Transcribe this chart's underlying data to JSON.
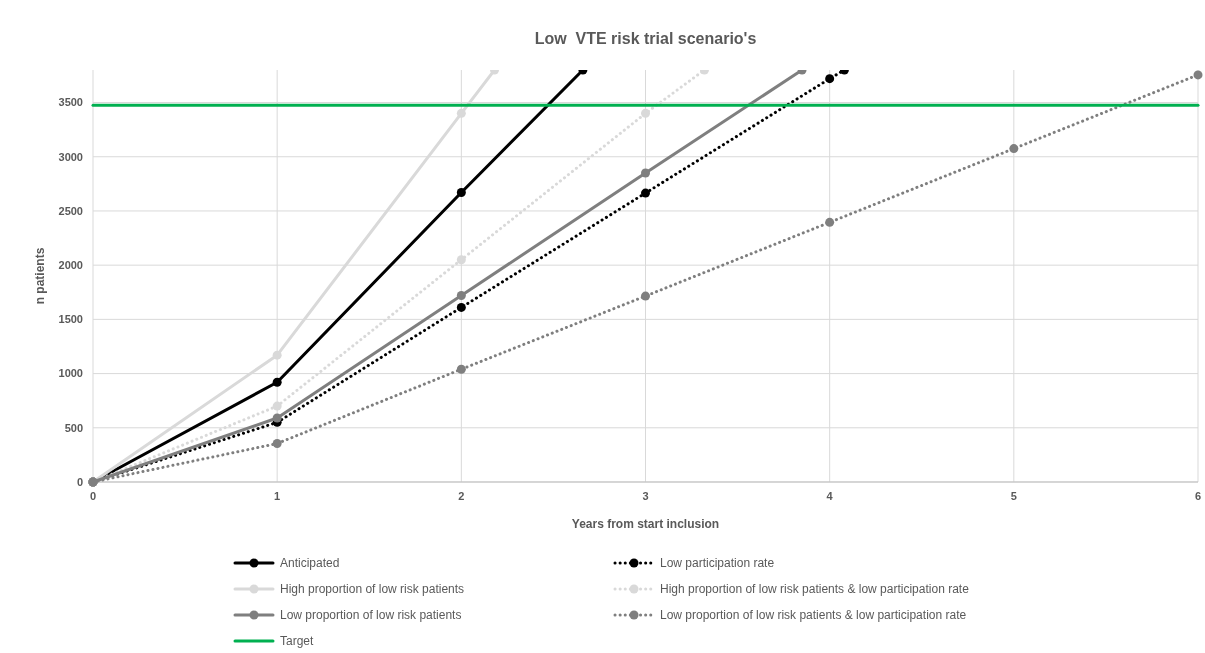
{
  "chart_data": {
    "type": "line",
    "title": "Low  VTE risk trial scenario's",
    "xlabel": "Years from start inclusion",
    "ylabel": "n patients",
    "xlim": [
      0,
      6
    ],
    "ylim": [
      0,
      3800
    ],
    "xticks": [
      0,
      1,
      2,
      3,
      4,
      5,
      6
    ],
    "yticks": [
      0,
      500,
      1000,
      1500,
      2000,
      2500,
      3000,
      3500
    ],
    "grid": true,
    "legend": "bottom",
    "marker": "circle",
    "series": [
      {
        "name": "Anticipated",
        "color": "#000000",
        "line_style": "solid",
        "x": [
          0,
          1,
          2,
          2.66
        ],
        "values": [
          0,
          920,
          2670,
          3800
        ]
      },
      {
        "name": "Low participation rate",
        "color": "#000000",
        "line_style": "dotted",
        "x": [
          0,
          1,
          2,
          3,
          4,
          4.08
        ],
        "values": [
          0,
          550,
          1610,
          2665,
          3720,
          3800
        ]
      },
      {
        "name": "High proportion of low risk patients",
        "color": "#d9d9d9",
        "line_style": "solid",
        "x": [
          0,
          1,
          2,
          2.18
        ],
        "values": [
          0,
          1170,
          3400,
          3800
        ]
      },
      {
        "name": "High proportion of low risk patients & low participation rate",
        "color": "#d9d9d9",
        "line_style": "dotted",
        "x": [
          0,
          1,
          2,
          3,
          3.32
        ],
        "values": [
          0,
          700,
          2050,
          3400,
          3800
        ]
      },
      {
        "name": "Low proportion of low risk patients",
        "color": "#7f7f7f",
        "line_style": "solid",
        "x": [
          0,
          1,
          2,
          3,
          3.85
        ],
        "values": [
          0,
          590,
          1720,
          2850,
          3800
        ]
      },
      {
        "name": "Low proportion of low risk patients & low participation rate",
        "color": "#7f7f7f",
        "line_style": "dotted",
        "x": [
          0,
          1,
          2,
          3,
          4,
          5,
          6
        ],
        "values": [
          0,
          355,
          1040,
          1715,
          2395,
          3075,
          3755
        ]
      },
      {
        "name": "Target",
        "color": "#00b050",
        "line_style": "solid",
        "marker": "none",
        "x": [
          0,
          6
        ],
        "values": [
          3475,
          3475
        ]
      }
    ]
  }
}
